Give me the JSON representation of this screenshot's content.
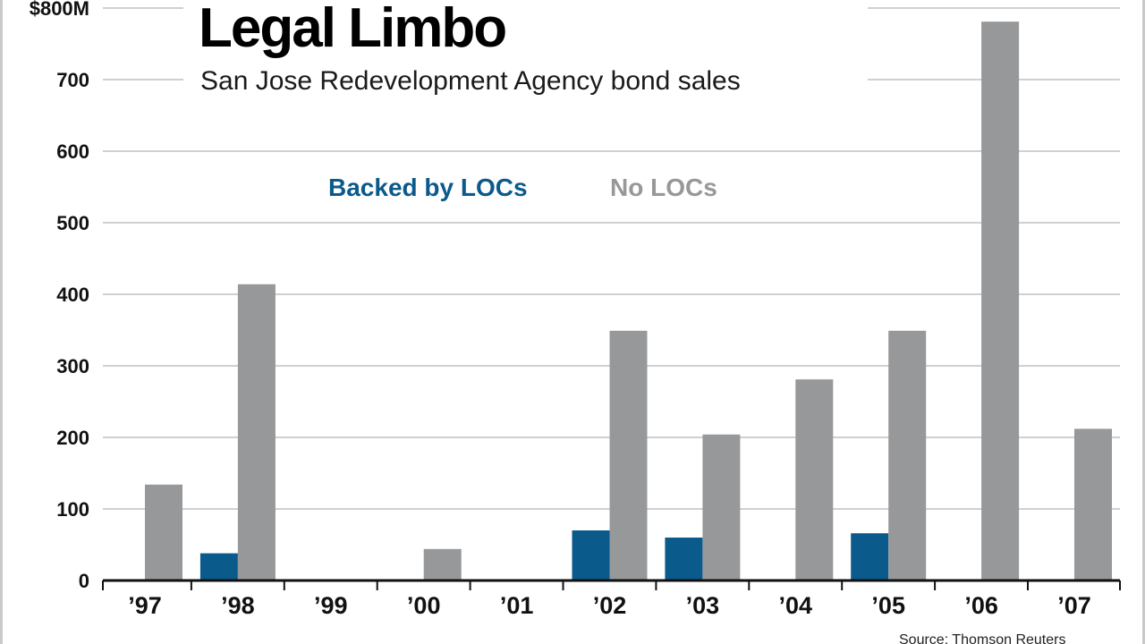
{
  "chart_data": {
    "type": "bar",
    "title": "Legal Limbo",
    "subtitle": "San Jose Redevelopment Agency bond sales",
    "ylim": [
      0,
      800
    ],
    "yticks": [
      0,
      100,
      200,
      300,
      400,
      500,
      600,
      700,
      800
    ],
    "ytick_labels": [
      "0",
      "100",
      "200",
      "300",
      "400",
      "500",
      "600",
      "700",
      "$800M"
    ],
    "categories": [
      "’97",
      "’98",
      "’99",
      "’00",
      "’01",
      "’02",
      "’03",
      "’04",
      "’05",
      "’06",
      "’07"
    ],
    "series": [
      {
        "name": "Backed by LOCs",
        "color": "#0b5a8c",
        "values": [
          0,
          38,
          0,
          0,
          0,
          70,
          60,
          0,
          66,
          0,
          0
        ]
      },
      {
        "name": "No LOCs",
        "color": "#97989a",
        "values": [
          134,
          414,
          0,
          44,
          0,
          349,
          204,
          281,
          349,
          781,
          212
        ]
      }
    ],
    "legend_position": "top-center",
    "grid": true,
    "source": "Source: Thomson Reuters"
  },
  "colors": {
    "grid": "#d0d0d0",
    "axis": "#111111",
    "frame": "#c9c9c9"
  }
}
